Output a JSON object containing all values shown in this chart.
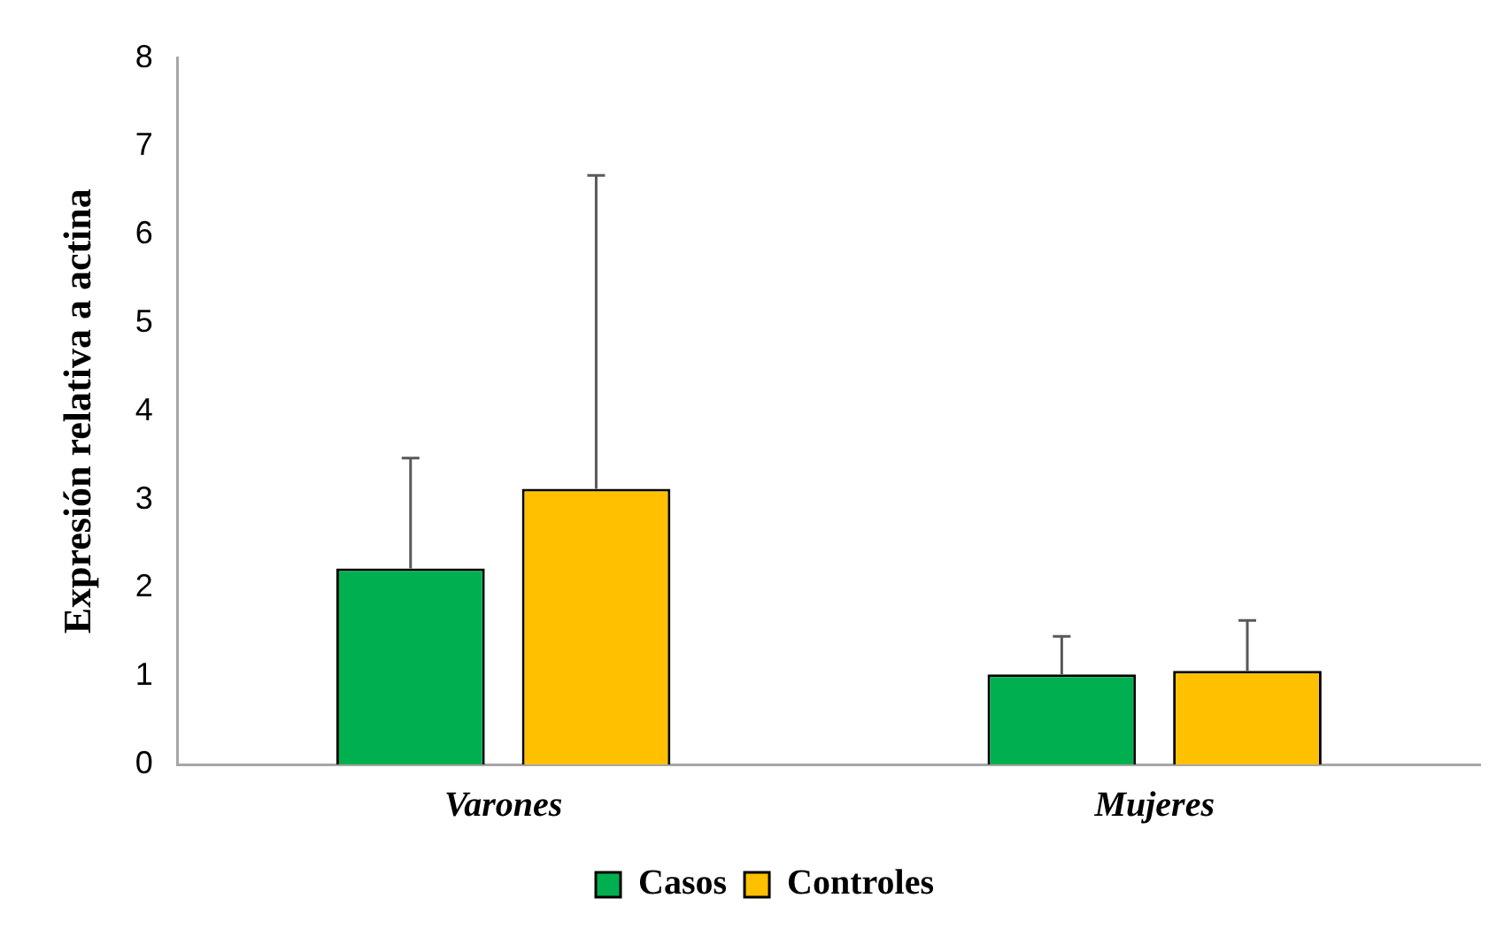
{
  "chart_data": {
    "type": "bar",
    "ylabel": "Expresión relativa a actina",
    "categories": [
      "Varones",
      "Mujeres"
    ],
    "series": [
      {
        "name": "Casos",
        "color": "#00b050",
        "values": [
          2.22,
          1.02
        ],
        "errors": [
          [
            2.22,
            3.47
          ],
          [
            1.02,
            1.45
          ]
        ]
      },
      {
        "name": "Controles",
        "color": "#ffc000",
        "values": [
          3.12,
          1.06
        ],
        "errors": [
          [
            3.12,
            6.67
          ],
          [
            1.06,
            1.63
          ]
        ]
      }
    ],
    "ylim": [
      0,
      8
    ],
    "yticks": [
      0,
      1,
      2,
      3,
      4,
      5,
      6,
      7,
      8
    ],
    "grid": false,
    "legend": "bottom"
  }
}
